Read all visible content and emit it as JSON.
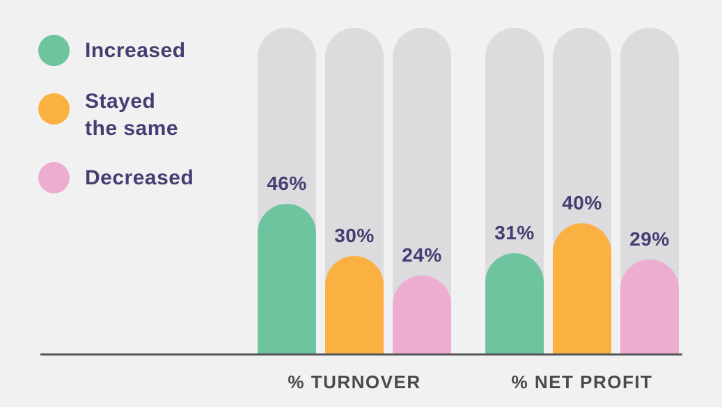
{
  "colors": {
    "background": "#f2f1f1",
    "track": "#dcdcde",
    "axis_line": "#57575a",
    "axis_label_text": "#4a4a4c",
    "value_label_text": "#443e72",
    "legend_text": "#443e72",
    "increased": "#6ec49f",
    "stayed_the_same": "#fbb042",
    "decreased": "#edacd2"
  },
  "legend": {
    "items": [
      {
        "label": "Increased",
        "color": "#6ec49f"
      },
      {
        "label": "Stayed the same",
        "color": "#fbb042"
      },
      {
        "label": "Decreased",
        "color": "#edacd2"
      }
    ]
  },
  "chart_data": {
    "type": "bar",
    "categories": [
      "% TURNOVER",
      "% NET PROFIT"
    ],
    "series": [
      {
        "name": "Increased",
        "color": "#6ec49f",
        "values": [
          46,
          31
        ]
      },
      {
        "name": "Stayed the same",
        "color": "#fbb042",
        "values": [
          30,
          40
        ]
      },
      {
        "name": "Decreased",
        "color": "#edacd2",
        "values": [
          24,
          29
        ]
      }
    ],
    "value_suffix": "%",
    "ylim": [
      0,
      100
    ],
    "grid": false,
    "legend_position": "left",
    "bar_value_labels": true,
    "track_background": true
  }
}
